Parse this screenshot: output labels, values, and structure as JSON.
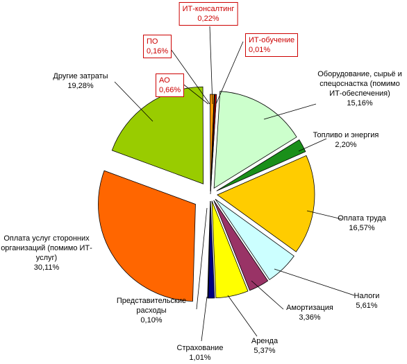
{
  "chart_data": {
    "type": "pie",
    "title": "",
    "slices": [
      {
        "label": "ИТ-обучение",
        "lines": [
          "ИТ-обучение",
          "0,01%"
        ],
        "value": 0.01,
        "color": "#c00000"
      },
      {
        "label": "Оборудование, сырьё и спецоснастка (помимо ИТ-обеспечения)",
        "lines": [
          "Оборудование, сырьё и",
          "спецоснастка (помимо",
          "ИТ-обеспечения)",
          "15,16%"
        ],
        "value": 15.16,
        "color": "#ccffcc"
      },
      {
        "label": "Топливо и энергия",
        "lines": [
          "Топливо и энергия",
          "2,20%"
        ],
        "value": 2.2,
        "color": "#1a8f1a"
      },
      {
        "label": "Оплата труда",
        "lines": [
          "Оплата труда",
          "16,57%"
        ],
        "value": 16.57,
        "color": "#ffcc00"
      },
      {
        "label": "Налоги",
        "lines": [
          "Налоги",
          "5,61%"
        ],
        "value": 5.61,
        "color": "#ccffff"
      },
      {
        "label": "Амортизация",
        "lines": [
          "Амортизация",
          "3,36%"
        ],
        "value": 3.36,
        "color": "#993366"
      },
      {
        "label": "Аренда",
        "lines": [
          "Аренда",
          "5,37%"
        ],
        "value": 5.37,
        "color": "#ffff00"
      },
      {
        "label": "Страхование",
        "lines": [
          "Страхование",
          "1,01%"
        ],
        "value": 1.01,
        "color": "#000080"
      },
      {
        "label": "Представительские расходы",
        "lines": [
          "Представительские",
          "расходы",
          "0,10%"
        ],
        "value": 0.1,
        "color": "#ccccff"
      },
      {
        "label": "Оплата услуг сторонних организаций (помимо ИТ-услуг)",
        "lines": [
          "Оплата услуг сторонних",
          "организаций (помимо ИТ-",
          "услуг)",
          "30,11%"
        ],
        "value": 30.11,
        "color": "#ff6600"
      },
      {
        "label": "Другие затраты",
        "lines": [
          "Другие затраты",
          "19,28%"
        ],
        "value": 19.28,
        "color": "#99cc00"
      },
      {
        "label": "АО",
        "lines": [
          "АО",
          "0,66%"
        ],
        "value": 0.66,
        "color": "#ff9900"
      },
      {
        "label": "ПО",
        "lines": [
          "ПО",
          "0,16%"
        ],
        "value": 0.16,
        "color": "#333333"
      },
      {
        "label": "ИТ-консалтинг",
        "lines": [
          "ИТ-консалтинг",
          "0,22%"
        ],
        "value": 0.22,
        "color": "#ff0000"
      }
    ],
    "legend": "none"
  }
}
